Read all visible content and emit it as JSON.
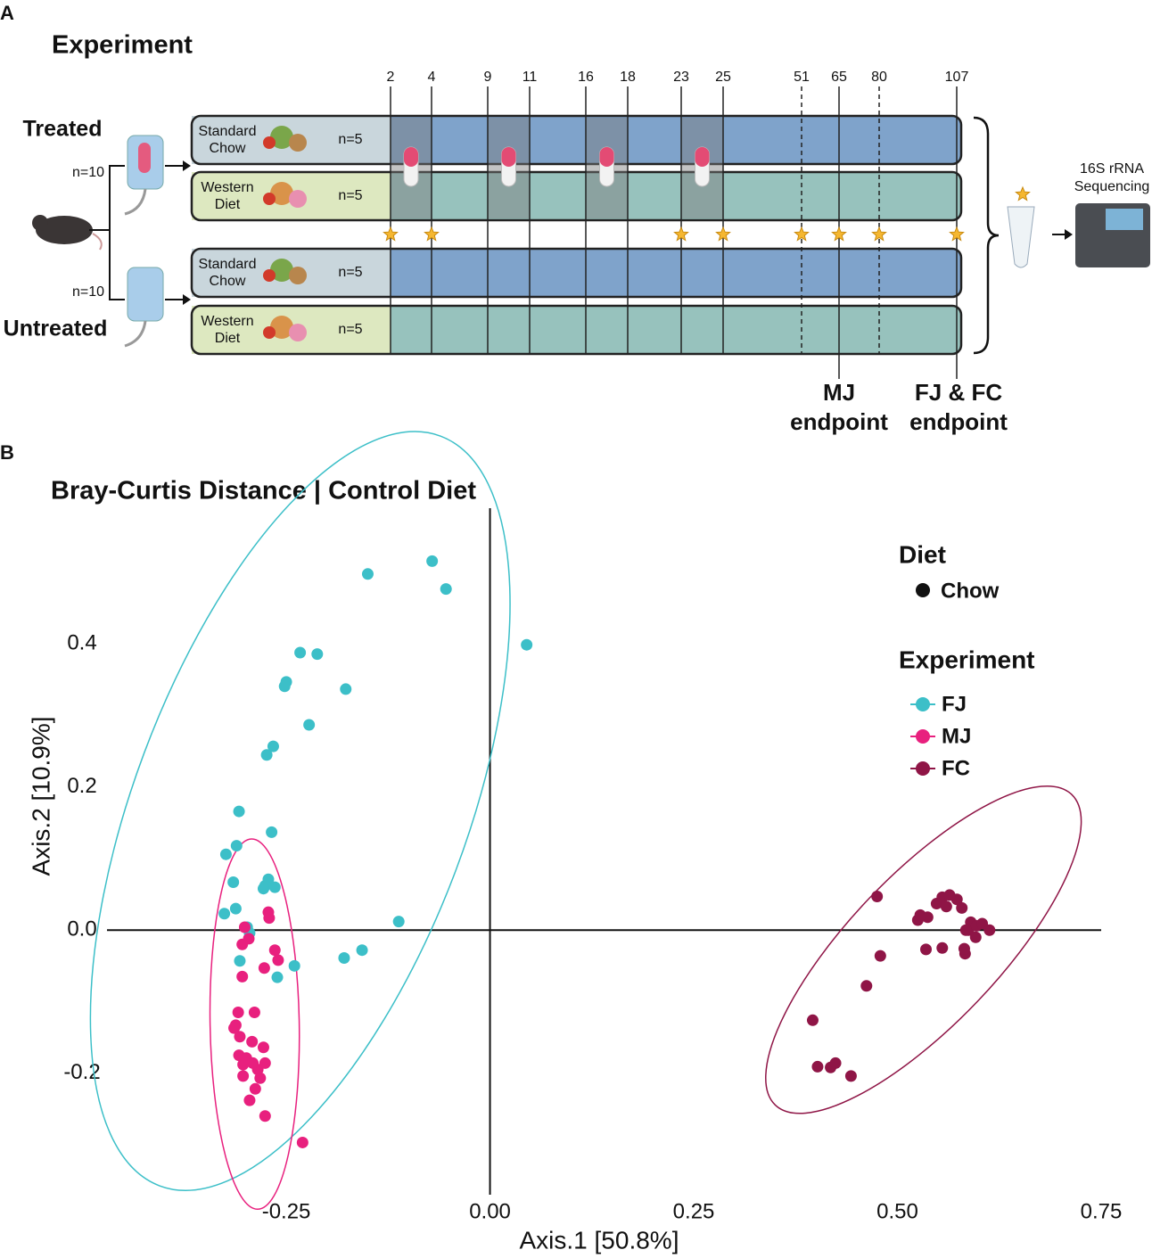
{
  "panel_a": {
    "label": "A",
    "title": "Experiment",
    "groups": [
      {
        "name": "Treated",
        "n": "n=10"
      },
      {
        "name": "Untreated",
        "n": "n=10"
      }
    ],
    "rows": [
      {
        "diet": [
          "Standard",
          "Chow"
        ],
        "n": "n=5"
      },
      {
        "diet": [
          "Western",
          "Diet"
        ],
        "n": "n=5"
      },
      {
        "diet": [
          "Standard",
          "Chow"
        ],
        "n": "n=5"
      },
      {
        "diet": [
          "Western",
          "Diet"
        ],
        "n": "n=5"
      }
    ],
    "days": [
      2,
      4,
      9,
      11,
      16,
      18,
      23,
      25,
      51,
      65,
      80,
      107
    ],
    "sequencing": [
      "16S rRNA",
      "Sequencing"
    ],
    "endpoints": [
      [
        "MJ",
        "endpoint"
      ],
      [
        "FJ & FC",
        "endpoint"
      ]
    ]
  },
  "panel_b_label": "B",
  "chart_data": {
    "type": "scatter",
    "title": "Bray-Curtis Distance | Control Diet",
    "x_label": "Axis.1 [50.8%]",
    "y_label": "Axis.2 [10.9%]",
    "xlim": [
      -0.47,
      0.75
    ],
    "ylim": [
      -0.37,
      0.59
    ],
    "xticks": [
      -0.25,
      {
        "value": 0,
        "label": "0.00"
      },
      0.25,
      {
        "value": 0.5,
        "label": "0.50"
      },
      0.75
    ],
    "yticks": [
      0.4,
      0.2,
      {
        "value": 0,
        "label": "0.0"
      },
      -0.2
    ],
    "grid": false,
    "diet_legend": {
      "title": "Diet",
      "entries": [
        "Chow"
      ]
    },
    "legend_title": "Experiment",
    "series": [
      {
        "name": "FJ",
        "color": "#3cbfc8",
        "x": [
          -0.071,
          -0.054,
          -0.15,
          0.045,
          -0.233,
          -0.212,
          -0.25,
          -0.252,
          -0.177,
          -0.222,
          -0.266,
          -0.274,
          -0.308,
          -0.268,
          -0.311,
          -0.324,
          -0.315,
          -0.272,
          -0.276,
          -0.264,
          -0.278,
          -0.312,
          -0.326,
          -0.112,
          -0.298,
          -0.295,
          -0.157,
          -0.179,
          -0.307,
          -0.24,
          -0.261
        ],
        "values": [
          0.516,
          0.477,
          0.498,
          0.399,
          0.388,
          0.386,
          0.347,
          0.341,
          0.337,
          0.287,
          0.257,
          0.245,
          0.166,
          0.137,
          0.118,
          0.106,
          0.067,
          0.071,
          0.062,
          0.06,
          0.058,
          0.03,
          0.023,
          0.012,
          0.004,
          -0.004,
          -0.028,
          -0.039,
          -0.043,
          -0.05,
          -0.066
        ]
      },
      {
        "name": "MJ",
        "color": "#e8207e",
        "x": [
          -0.272,
          -0.271,
          -0.301,
          -0.296,
          -0.304,
          -0.264,
          -0.277,
          -0.304,
          -0.26,
          -0.309,
          -0.289,
          -0.314,
          -0.307,
          -0.292,
          -0.278,
          -0.308,
          -0.299,
          -0.276,
          -0.303,
          -0.285,
          -0.282,
          -0.303,
          -0.288,
          -0.295,
          -0.276,
          -0.23,
          -0.312,
          -0.291
        ],
        "values": [
          0.025,
          0.017,
          0.004,
          -0.012,
          -0.02,
          -0.028,
          -0.053,
          -0.065,
          -0.042,
          -0.115,
          -0.115,
          -0.137,
          -0.149,
          -0.156,
          -0.164,
          -0.175,
          -0.179,
          -0.186,
          -0.188,
          -0.195,
          -0.207,
          -0.204,
          -0.222,
          -0.238,
          -0.26,
          -0.297,
          -0.133,
          -0.186
        ]
      },
      {
        "name": "FC",
        "color": "#8f1546",
        "x": [
          0.475,
          0.525,
          0.537,
          0.548,
          0.555,
          0.56,
          0.573,
          0.579,
          0.59,
          0.587,
          0.597,
          0.604,
          0.613,
          0.596,
          0.584,
          0.555,
          0.535,
          0.583,
          0.582,
          0.479,
          0.462,
          0.396,
          0.402,
          0.418,
          0.424,
          0.443,
          0.528,
          0.564
        ],
        "values": [
          0.047,
          0.014,
          0.018,
          0.037,
          0.046,
          0.033,
          0.043,
          0.031,
          0.011,
          0,
          0.006,
          0.009,
          0,
          -0.01,
          0,
          -0.025,
          -0.027,
          -0.033,
          -0.026,
          -0.036,
          -0.078,
          -0.126,
          -0.191,
          -0.192,
          -0.186,
          -0.204,
          0.021,
          0.049
        ]
      }
    ]
  }
}
